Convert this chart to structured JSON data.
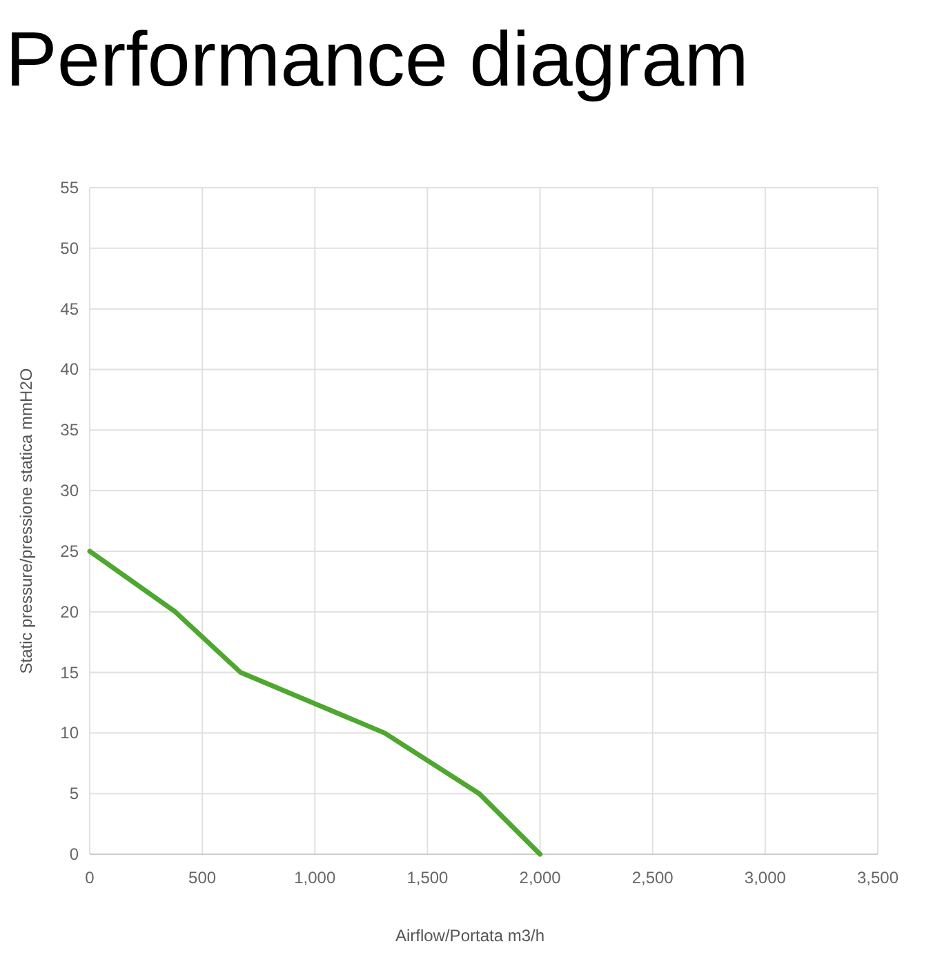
{
  "chart_data": {
    "type": "line",
    "title": "Performance diagram",
    "xlabel": "Airflow/Portata m3/h",
    "ylabel": "Static pressure/pressione statica mmH2O",
    "x": [
      0,
      380,
      670,
      1310,
      1730,
      2000
    ],
    "series": [
      {
        "color": "#4ea72e",
        "values": [
          25,
          20,
          15,
          10,
          5,
          0
        ]
      }
    ],
    "xlim": [
      0,
      3500
    ],
    "xticks": [
      0,
      {
        "value": 500,
        "label": "500"
      },
      {
        "value": 1000,
        "label": "1,000"
      },
      {
        "value": 1500,
        "label": "1,500"
      },
      {
        "value": 2000,
        "label": "2,000"
      },
      {
        "value": 2500,
        "label": "2,500"
      },
      {
        "value": 3000,
        "label": "3,000"
      },
      {
        "value": 3500,
        "label": "3,500"
      }
    ],
    "ylim": [
      0,
      55
    ],
    "yticks": [
      0,
      5,
      10,
      15,
      20,
      25,
      30,
      35,
      40,
      45,
      50,
      55
    ],
    "grid": true,
    "marker": "none",
    "line_style": "solid"
  }
}
